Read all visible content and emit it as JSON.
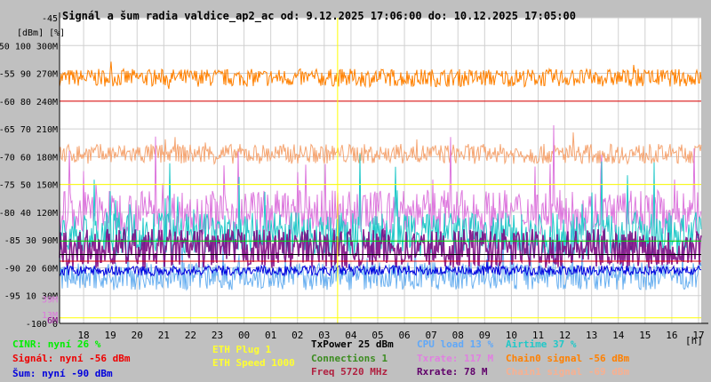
{
  "chart_data": {
    "type": "line",
    "title": "Signál a šum radia valdice_ap2_ac od: 9.12.2025 17:06:00 do: 10.12.2025 17:05:00",
    "ylabel": "[dBm] [%]",
    "xlabel": "[h]",
    "y_range_dbm": [
      -100,
      -45
    ],
    "y_ticks": [
      {
        "dbm": "-45",
        "pct": "",
        "rate": ""
      },
      {
        "dbm": "-50",
        "pct": "100",
        "rate": "300M"
      },
      {
        "dbm": "-55",
        "pct": "90",
        "rate": "270M"
      },
      {
        "dbm": "-60",
        "pct": "80",
        "rate": "240M"
      },
      {
        "dbm": "-65",
        "pct": "70",
        "rate": "210M"
      },
      {
        "dbm": "-70",
        "pct": "60",
        "rate": "180M"
      },
      {
        "dbm": "-75",
        "pct": "50",
        "rate": "150M"
      },
      {
        "dbm": "-80",
        "pct": "40",
        "rate": "120M"
      },
      {
        "dbm": "-85",
        "pct": "30",
        "rate": "90M"
      },
      {
        "dbm": "-90",
        "pct": "20",
        "rate": "60M"
      },
      {
        "dbm": "-95",
        "pct": "10",
        "rate": "30M"
      },
      {
        "dbm": "-100",
        "pct": "0",
        "rate": ""
      }
    ],
    "extra_labels": [
      {
        "text": "39M",
        "dbm": -95.6,
        "color": "#dd77dd"
      },
      {
        "text": "13M",
        "dbm": -98.4,
        "color": "#dd77dd"
      },
      {
        "text": "6M",
        "dbm": -99.4,
        "color": "#880088"
      }
    ],
    "x_ticks": [
      "18",
      "19",
      "20",
      "21",
      "22",
      "23",
      "00",
      "01",
      "02",
      "03",
      "04",
      "05",
      "06",
      "07",
      "08",
      "09",
      "10",
      "11",
      "12",
      "13",
      "14",
      "15",
      "16",
      "17"
    ],
    "x_start_hour": 17.1,
    "x_span_hours": 24,
    "marker_hour": 3.5,
    "grid": true,
    "series": [
      {
        "name": "Chain0 signal",
        "color": "#ff8000",
        "level_dbm": -55.8,
        "jitter": 1.6,
        "mode": "band"
      },
      {
        "name": "Chain1 signal",
        "color": "#f5a572",
        "level_dbm": -69.5,
        "jitter": 1.8,
        "mode": "band"
      },
      {
        "name": "Txrate",
        "color": "#dd77dd",
        "level_dbm": -80,
        "jitter": 4,
        "mode": "spiky"
      },
      {
        "name": "Airtime",
        "color": "#20c8c8",
        "level_dbm": -84,
        "jitter": 4,
        "mode": "spiky"
      },
      {
        "name": "CPU load",
        "color": "#6ab0f0",
        "level_dbm": -91.5,
        "jitter": 2.5,
        "mode": "spiky"
      },
      {
        "name": "Rxrate",
        "color": "#7a0080",
        "level_dbm": -86.5,
        "jitter": 3.5,
        "mode": "bars"
      },
      {
        "name": "Šum",
        "color": "#0000dd",
        "level_dbm": -90.5,
        "jitter": 0.9,
        "mode": "band"
      }
    ],
    "ref_lines": [
      {
        "name": "Signál",
        "color": "#dd0000",
        "dbm": -60
      },
      {
        "name": "Signál",
        "color": "#dd0000",
        "dbm": -88.8
      },
      {
        "name": "ETH Speed",
        "color": "#ffff00",
        "dbm": -75
      },
      {
        "name": "ETH Speed",
        "color": "#ffff00",
        "dbm": -99
      },
      {
        "name": "TxPower",
        "color": "#000000",
        "dbm": -87.6
      },
      {
        "name": "CINR",
        "color": "#00dd00",
        "dbm": -85.2
      }
    ]
  },
  "legend": [
    {
      "text": "CINR: nyní 26 %",
      "color": "#00ee00"
    },
    {
      "text": "Signál: nyní -56 dBm",
      "color": "#ee0000"
    },
    {
      "text": "Šum: nyní -90 dBm",
      "color": "#0000dd"
    },
    {
      "text": "ETH Plug 1",
      "color": "#ffff30"
    },
    {
      "text": "ETH Speed 1000",
      "color": "#ffff30"
    },
    {
      "text": "TxPower 25 dBm",
      "color": "#000000"
    },
    {
      "text": "Connections 1",
      "color": "#3c8c20"
    },
    {
      "text": "Freq 5720 MHz",
      "color": "#b02040"
    },
    {
      "text": "CPU load 13 %",
      "color": "#60a8f8"
    },
    {
      "text": "Txrate: 117 M",
      "color": "#e080e0"
    },
    {
      "text": "Rxrate: 78 M",
      "color": "#60006a"
    },
    {
      "text": "Airtime 37 %",
      "color": "#20c8c8"
    },
    {
      "text": "Chain0 signal -56 dBm",
      "color": "#ff8000"
    },
    {
      "text": "Chain1 signal -69 dBm",
      "color": "#f8b090"
    }
  ]
}
